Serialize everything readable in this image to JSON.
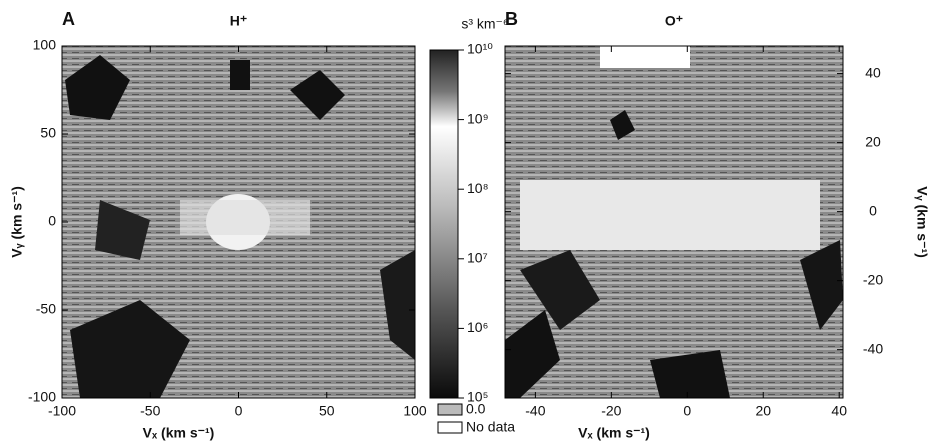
{
  "chart_data": [
    {
      "type": "heatmap",
      "panel_label": "A",
      "title": "H⁺",
      "x_label": "Vₓ (km s⁻¹)",
      "y_label": "Vᵧ (km s⁻¹)",
      "xlim": [
        -100,
        100
      ],
      "ylim": [
        -100,
        100
      ],
      "xticks": [
        -100,
        -50,
        0,
        50,
        100
      ],
      "yticks": [
        -100,
        -50,
        0,
        50,
        100
      ],
      "y_axis_side": "left"
    },
    {
      "type": "heatmap",
      "panel_label": "B",
      "title": "O⁺",
      "x_label": "Vₓ (km s⁻¹)",
      "y_label": "Vᵧ (km s⁻¹)",
      "xlim": [
        -48,
        41
      ],
      "ylim": [
        -54,
        48
      ],
      "xticks": [
        -40,
        -20,
        0,
        20,
        40
      ],
      "yticks": [
        -40,
        -20,
        0,
        20,
        40
      ],
      "y_axis_side": "right"
    }
  ],
  "colorbar": {
    "title": "s³ km⁻⁶",
    "scale": "log",
    "lim": [
      100000,
      10000000000
    ],
    "ticks": [
      {
        "value": 100000,
        "label": "10⁵"
      },
      {
        "value": 1000000,
        "label": "10⁶"
      },
      {
        "value": 10000000,
        "label": "10⁷"
      },
      {
        "value": 100000000,
        "label": "10⁸"
      },
      {
        "value": 1000000000,
        "label": "10⁹"
      },
      {
        "value": 10000000000,
        "label": "10¹⁰"
      }
    ],
    "legend": [
      "0.0",
      "No data"
    ]
  }
}
